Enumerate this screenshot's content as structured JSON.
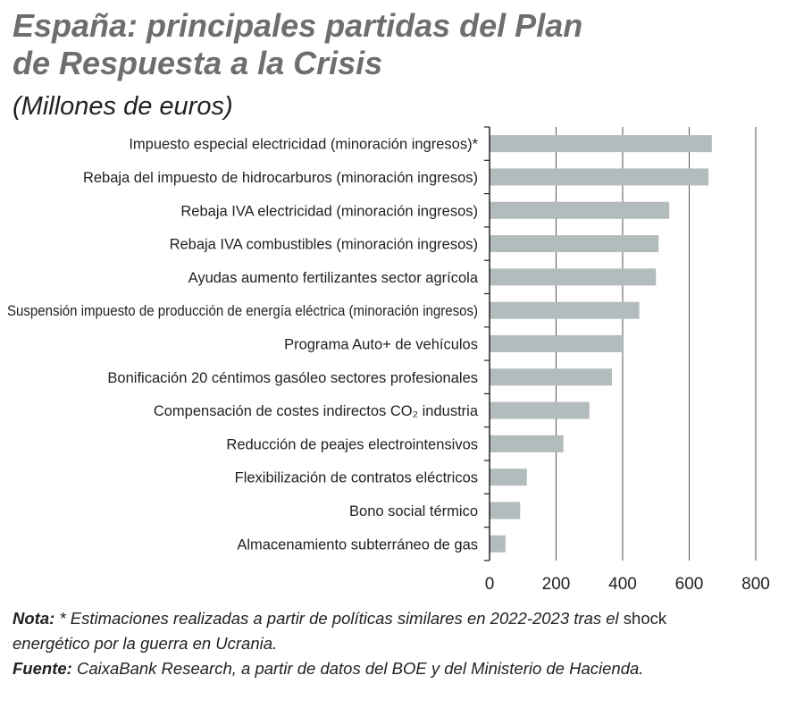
{
  "header": {
    "title_line1": "España: principales partidas del Plan",
    "title_line2": "de Respuesta a la Crisis",
    "subtitle": "(Millones de euros)"
  },
  "chart_data": {
    "type": "bar",
    "orientation": "horizontal",
    "categories": [
      "Impuesto especial electricidad (minoración ingresos)*",
      "Rebaja del impuesto de hidrocarburos (minoración ingresos)",
      "Rebaja IVA electricidad (minoración ingresos)",
      "Rebaja IVA combustibles (minoración ingresos)",
      "Ayudas aumento fertilizantes sector agrícola",
      "Suspensión impuesto de producción de energía eléctrica (minoración ingresos)",
      "Programa Auto+ de vehículos",
      "Bonificación 20 céntimos gasóleo sectores profesionales",
      "Compensación de costes indirectos CO₂ industria",
      "Reducción de peajes electrointensivos",
      "Flexibilización de contratos eléctricos",
      "Bono social térmico",
      "Almacenamiento subterráneo de gas"
    ],
    "values": [
      668,
      658,
      540,
      508,
      500,
      450,
      400,
      368,
      300,
      222,
      112,
      92,
      48
    ],
    "xlim": [
      0,
      800
    ],
    "xticks": [
      0,
      200,
      400,
      600,
      800
    ],
    "xtick_labels": [
      "0",
      "200",
      "400",
      "600",
      "800"
    ],
    "bar_color": "#b3bcbd",
    "grid": true
  },
  "notes": {
    "nota_label": "Nota:",
    "nota_text_1": " * Estimaciones realizadas a partir de políticas similares en 2022-2023 tras el ",
    "nota_word": "shock",
    "nota_text_2": "energético por la guerra en Ucrania.",
    "fuente_label": "Fuente:",
    "fuente_text": " CaixaBank Research, a partir de datos del BOE y del Ministerio de Hacienda."
  }
}
